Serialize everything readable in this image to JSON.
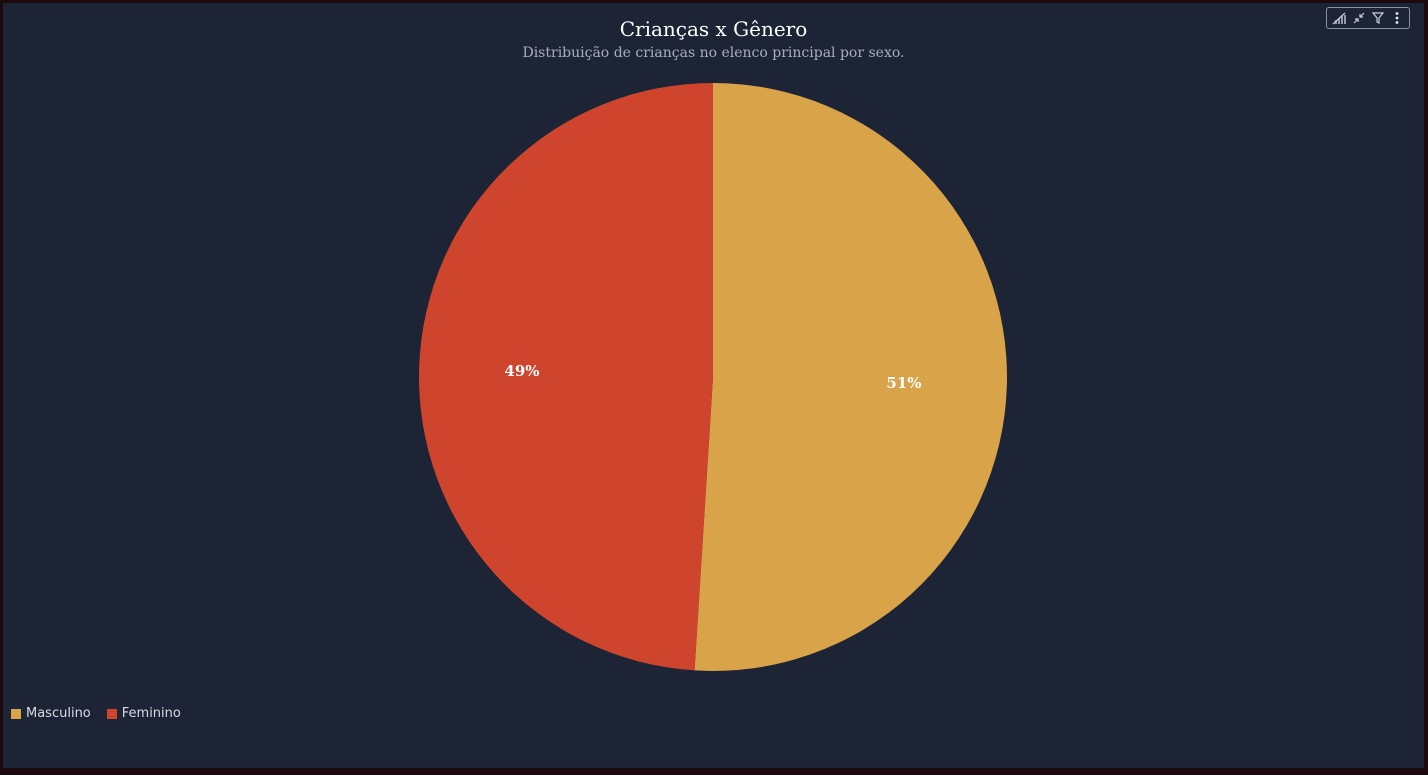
{
  "title": "Crianças x Gênero",
  "subtitle": "Distribuição de crianças no elenco principal por sexo.",
  "toolbar": {
    "icons": [
      "drill-chart-icon",
      "collapse-icon",
      "filter-icon",
      "more-options-icon"
    ]
  },
  "chart_data": {
    "type": "pie",
    "title": "Crianças x Gênero",
    "subtitle": "Distribuição de crianças no elenco principal por sexo.",
    "legend_position": "bottom-left",
    "slices": [
      {
        "name": "Masculino",
        "value": 51,
        "label": "51%",
        "color": "#d8a349"
      },
      {
        "name": "Feminino",
        "value": 49,
        "label": "49%",
        "color": "#cf442d"
      }
    ]
  }
}
